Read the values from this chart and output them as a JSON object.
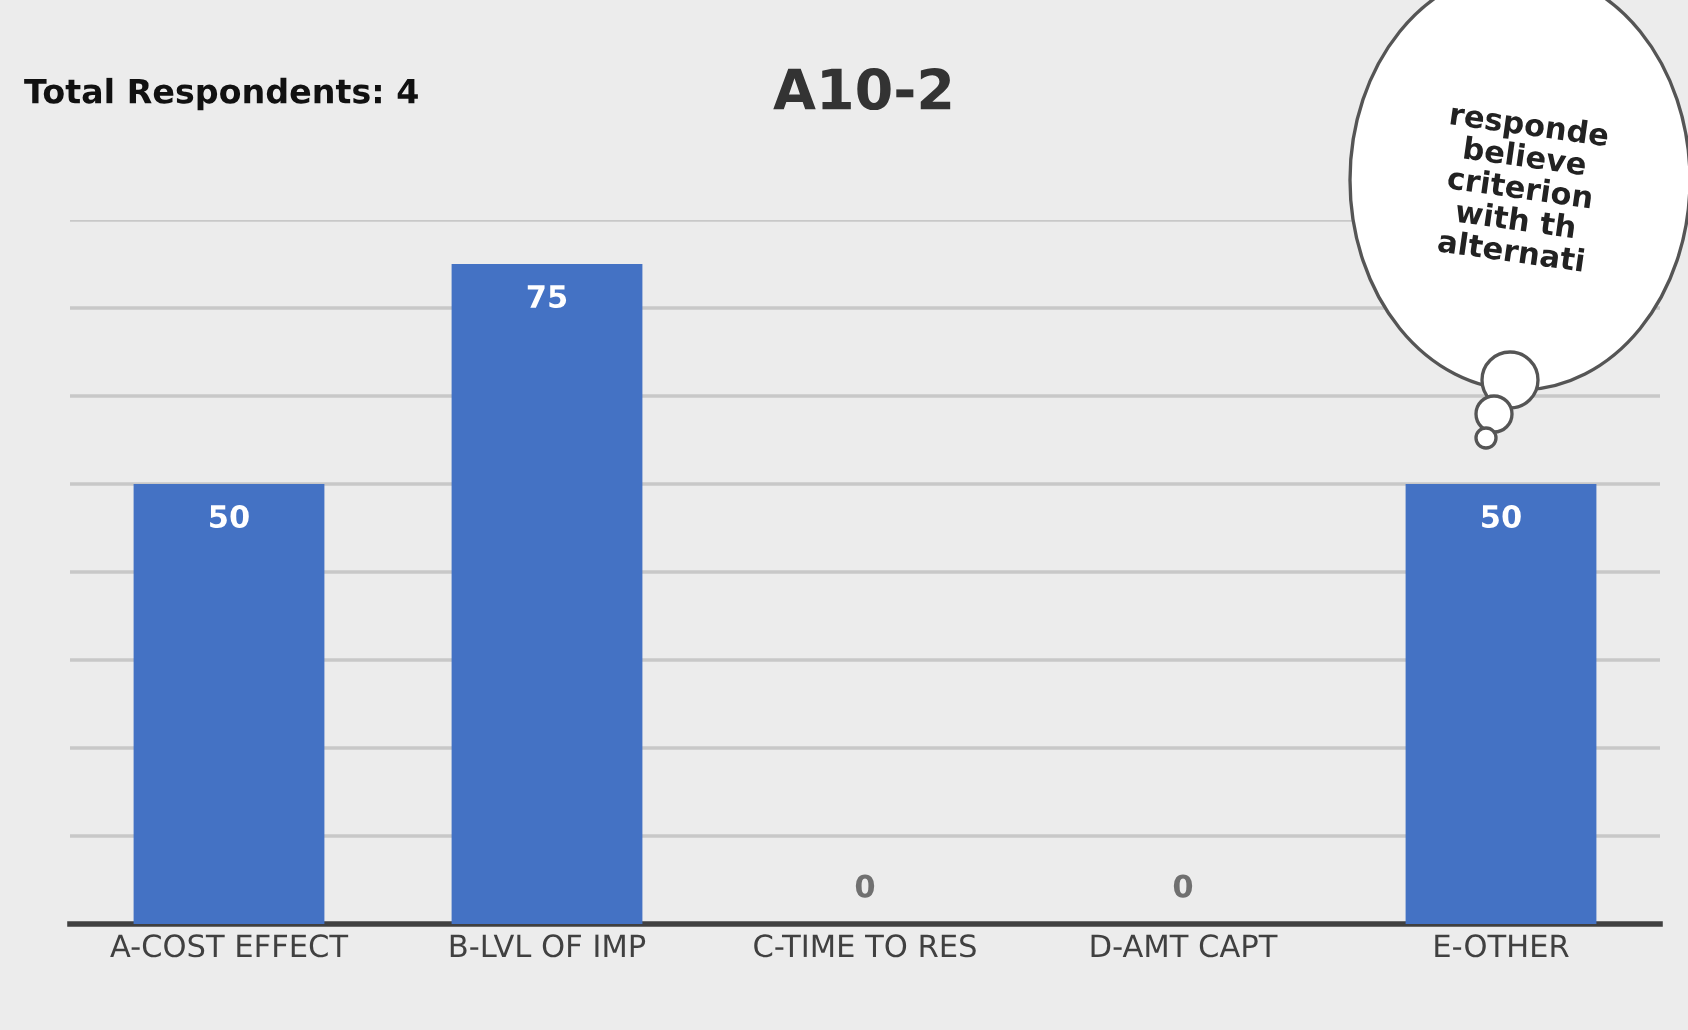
{
  "chart_data": {
    "type": "bar",
    "title": "A10-2",
    "categories": [
      "A-COST EFFECT",
      "B-LVL OF IMP",
      "C-TIME TO RES",
      "D-AMT CAPT",
      "E-OTHER"
    ],
    "values": [
      50,
      75,
      0,
      0,
      50
    ],
    "color": "#4472c4",
    "data_labels": true,
    "ylim": [
      0,
      80
    ],
    "yticks": [
      {
        "value": 10,
        "label": null
      },
      {
        "value": 20,
        "label": null
      },
      {
        "value": 30,
        "label": null
      },
      {
        "value": 40,
        "label": null
      },
      {
        "value": 50,
        "label": null
      },
      {
        "value": 60,
        "label": null
      },
      {
        "value": 70,
        "label": null
      },
      {
        "value": 80,
        "label": null
      }
    ],
    "grid": "y",
    "tick_labels": "x",
    "annotations": [
      "Total Respondents: 4",
      "responde\nbelieve\ncriterion\nwith th\nalternati"
    ]
  }
}
